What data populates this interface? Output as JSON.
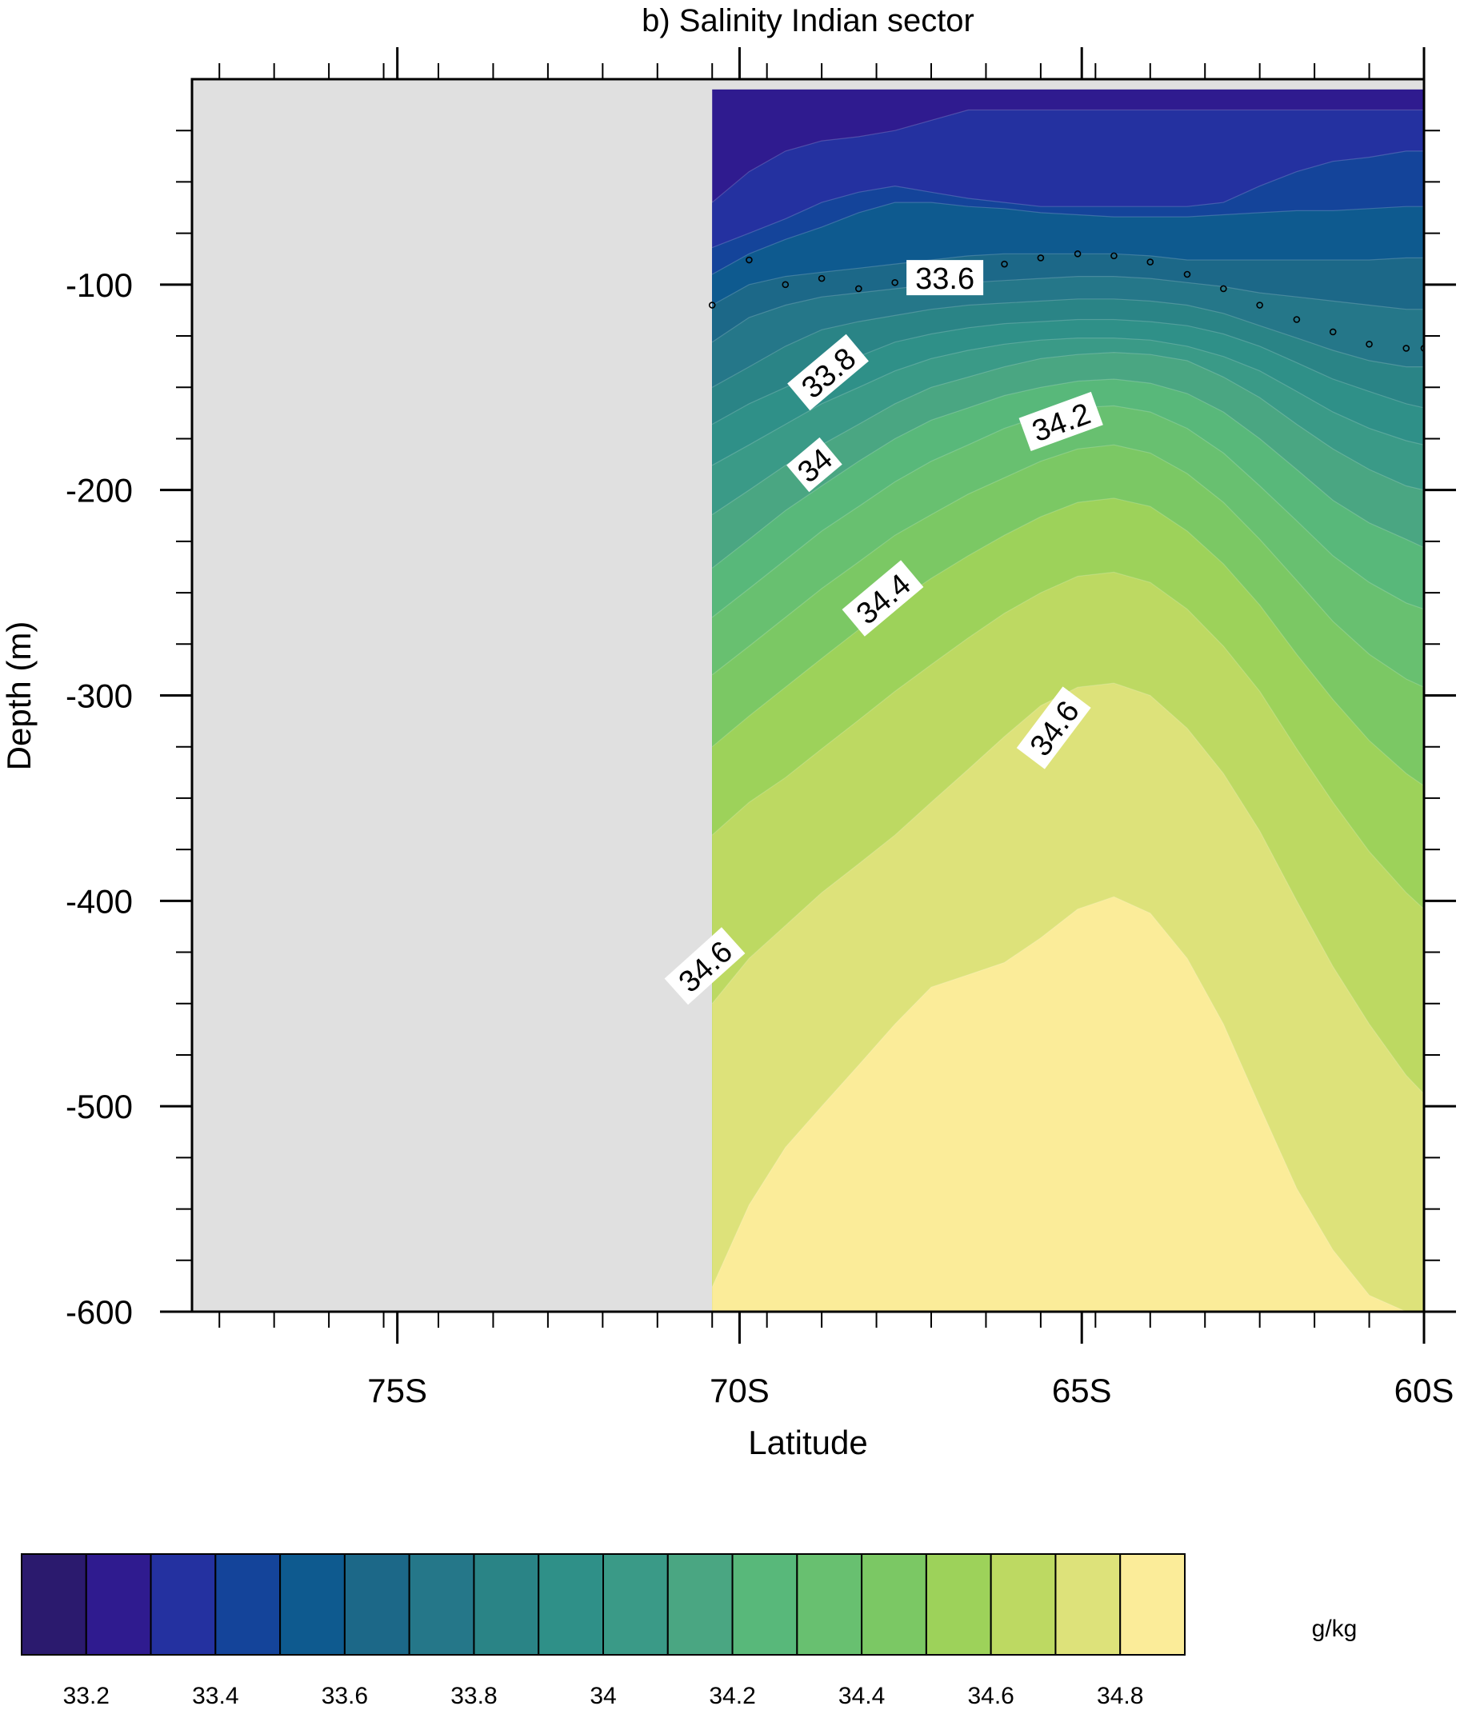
{
  "chart_data": {
    "type": "contour",
    "title": "b) Salinity Indian sector",
    "xlabel": "Latitude",
    "ylabel": "Depth (m)",
    "units_label": "g/kg",
    "x_range": [
      -78,
      -60
    ],
    "y_range": [
      -600,
      0
    ],
    "x_ticks": [
      {
        "value": -75,
        "label": "75S"
      },
      {
        "value": -70,
        "label": "70S"
      },
      {
        "value": -65,
        "label": "65S"
      },
      {
        "value": -60,
        "label": "60S"
      }
    ],
    "y_ticks": [
      {
        "value": -100,
        "label": "-100"
      },
      {
        "value": -200,
        "label": "-200"
      },
      {
        "value": -300,
        "label": "-300"
      },
      {
        "value": -400,
        "label": "-400"
      },
      {
        "value": -500,
        "label": "-500"
      },
      {
        "value": -600,
        "label": "-600"
      }
    ],
    "data_extent": {
      "lat_min": -70.4,
      "lat_max": -60,
      "depth_top": -5,
      "depth_bottom": -600
    },
    "missing_color": "#e0e0e0",
    "levels": [
      33.1,
      33.2,
      33.3,
      33.4,
      33.5,
      33.6,
      33.7,
      33.8,
      33.9,
      34.0,
      34.1,
      34.2,
      34.3,
      34.4,
      34.5,
      34.6,
      34.7,
      34.8,
      34.9
    ],
    "colors": [
      "#2b1a6e",
      "#2f1b8f",
      "#2431a0",
      "#14449a",
      "#0e5a8f",
      "#1c6888",
      "#257789",
      "#2a8486",
      "#2f9088",
      "#3a9a87",
      "#4aa682",
      "#58b87a",
      "#68c070",
      "#7bc864",
      "#9dd25a",
      "#bdd962",
      "#dde27a",
      "#fbec99"
    ],
    "colorbar_labels": [
      {
        "value": 33.2,
        "label": "33.2"
      },
      {
        "value": 33.4,
        "label": "33.4"
      },
      {
        "value": 33.6,
        "label": "33.6"
      },
      {
        "value": 33.8,
        "label": "33.8"
      },
      {
        "value": 34.0,
        "label": "34"
      },
      {
        "value": 34.2,
        "label": "34.2"
      },
      {
        "value": 34.4,
        "label": "34.4"
      },
      {
        "value": 34.6,
        "label": "34.6"
      },
      {
        "value": 34.8,
        "label": "34.8"
      }
    ],
    "latitudes": [
      -70.4,
      -69.86,
      -69.33,
      -68.8,
      -68.26,
      -67.73,
      -67.2,
      -66.66,
      -66.13,
      -65.6,
      -65.06,
      -64.53,
      -64.0,
      -63.46,
      -62.93,
      -62.4,
      -61.86,
      -61.33,
      -60.8,
      -60.26,
      -60.0
    ],
    "contour_lines": [
      {
        "level": 33.3,
        "depths": [
          -60,
          -45,
          -35,
          -30,
          -28,
          -25,
          -20,
          -15,
          -15,
          -15,
          -15,
          -15,
          -15,
          -15,
          -15,
          -15,
          -15,
          -15,
          -15,
          -15,
          -15
        ]
      },
      {
        "level": 33.4,
        "depths": [
          -82,
          -75,
          -68,
          -60,
          -55,
          -52,
          -55,
          -58,
          -60,
          -62,
          -62,
          -62,
          -62,
          -62,
          -60,
          -52,
          -45,
          -40,
          -38,
          -35,
          -35
        ]
      },
      {
        "level": 33.5,
        "depths": [
          -95,
          -85,
          -78,
          -72,
          -65,
          -60,
          -60,
          -62,
          -63,
          -65,
          -66,
          -67,
          -67,
          -67,
          -66,
          -65,
          -64,
          -64,
          -63,
          -62,
          -62
        ]
      },
      {
        "level": 33.6,
        "depths": [
          -110,
          -100,
          -96,
          -94,
          -92,
          -90,
          -88,
          -86,
          -85,
          -85,
          -85,
          -85,
          -86,
          -88,
          -88,
          -88,
          -88,
          -88,
          -88,
          -87,
          -87
        ]
      },
      {
        "level": 33.7,
        "depths": [
          -128,
          -116,
          -110,
          -106,
          -104,
          -102,
          -100,
          -99,
          -98,
          -97,
          -96,
          -96,
          -97,
          -99,
          -101,
          -104,
          -106,
          -108,
          -110,
          -112,
          -112
        ]
      },
      {
        "level": 33.8,
        "depths": [
          -150,
          -140,
          -130,
          -122,
          -118,
          -115,
          -112,
          -110,
          -109,
          -108,
          -107,
          -107,
          -108,
          -110,
          -114,
          -120,
          -126,
          -132,
          -137,
          -140,
          -140
        ]
      },
      {
        "level": 33.9,
        "depths": [
          -168,
          -158,
          -150,
          -142,
          -135,
          -128,
          -124,
          -121,
          -119,
          -118,
          -117,
          -117,
          -118,
          -120,
          -124,
          -130,
          -138,
          -146,
          -152,
          -158,
          -160
        ]
      },
      {
        "level": 34.0,
        "depths": [
          -188,
          -178,
          -168,
          -158,
          -150,
          -142,
          -136,
          -132,
          -129,
          -127,
          -126,
          -126,
          -127,
          -130,
          -135,
          -142,
          -152,
          -162,
          -170,
          -176,
          -178
        ]
      },
      {
        "level": 34.1,
        "depths": [
          -212,
          -200,
          -188,
          -178,
          -168,
          -158,
          -150,
          -145,
          -140,
          -136,
          -134,
          -133,
          -134,
          -137,
          -145,
          -155,
          -168,
          -180,
          -190,
          -198,
          -200
        ]
      },
      {
        "level": 34.2,
        "depths": [
          -238,
          -224,
          -210,
          -198,
          -186,
          -175,
          -166,
          -160,
          -154,
          -150,
          -147,
          -146,
          -148,
          -153,
          -162,
          -175,
          -190,
          -205,
          -216,
          -224,
          -228
        ]
      },
      {
        "level": 34.3,
        "depths": [
          -262,
          -248,
          -234,
          -220,
          -208,
          -196,
          -186,
          -178,
          -170,
          -164,
          -160,
          -159,
          -162,
          -170,
          -182,
          -198,
          -215,
          -232,
          -245,
          -255,
          -258
        ]
      },
      {
        "level": 34.4,
        "depths": [
          -290,
          -276,
          -262,
          -248,
          -235,
          -222,
          -212,
          -202,
          -194,
          -186,
          -180,
          -178,
          -182,
          -192,
          -206,
          -224,
          -244,
          -264,
          -280,
          -292,
          -296
        ]
      },
      {
        "level": 34.5,
        "depths": [
          -325,
          -310,
          -296,
          -282,
          -268,
          -255,
          -243,
          -232,
          -222,
          -213,
          -206,
          -204,
          -208,
          -220,
          -236,
          -256,
          -280,
          -302,
          -322,
          -338,
          -344
        ]
      },
      {
        "level": 34.6,
        "depths": [
          -368,
          -352,
          -340,
          -326,
          -312,
          -298,
          -285,
          -272,
          -260,
          -250,
          -242,
          -240,
          -245,
          -258,
          -276,
          -298,
          -326,
          -352,
          -376,
          -396,
          -404
        ]
      },
      {
        "level": 34.7,
        "depths": [
          -450,
          -428,
          -412,
          -396,
          -382,
          -368,
          -352,
          -336,
          -320,
          -305,
          -296,
          -294,
          -300,
          -316,
          -338,
          -366,
          -400,
          -432,
          -460,
          -485,
          -494
        ]
      },
      {
        "level": 34.8,
        "depths": [
          -588,
          -548,
          -520,
          -500,
          -480,
          -460,
          -442,
          -436,
          -430,
          -418,
          -404,
          -398,
          -406,
          -428,
          -460,
          -500,
          -540,
          -570,
          -592,
          -600,
          -600
        ]
      }
    ],
    "mixed_layer_points": [
      {
        "lat": -70.4,
        "depth": -110
      },
      {
        "lat": -69.86,
        "depth": -88
      },
      {
        "lat": -69.33,
        "depth": -100
      },
      {
        "lat": -68.8,
        "depth": -97
      },
      {
        "lat": -68.26,
        "depth": -102
      },
      {
        "lat": -67.73,
        "depth": -99
      },
      {
        "lat": -67.2,
        "depth": -95
      },
      {
        "lat": -66.66,
        "depth": -92
      },
      {
        "lat": -66.13,
        "depth": -90
      },
      {
        "lat": -65.6,
        "depth": -87
      },
      {
        "lat": -65.06,
        "depth": -85
      },
      {
        "lat": -64.53,
        "depth": -86
      },
      {
        "lat": -64.0,
        "depth": -89
      },
      {
        "lat": -63.46,
        "depth": -95
      },
      {
        "lat": -62.93,
        "depth": -102
      },
      {
        "lat": -62.4,
        "depth": -110
      },
      {
        "lat": -61.86,
        "depth": -117
      },
      {
        "lat": -61.33,
        "depth": -123
      },
      {
        "lat": -60.8,
        "depth": -129
      },
      {
        "lat": -60.26,
        "depth": -131
      },
      {
        "lat": -60.0,
        "depth": -131
      }
    ],
    "line_labels": [
      {
        "text": "33.6",
        "lat": -67.0,
        "depth": -97,
        "angle": 0
      },
      {
        "text": "33.8",
        "lat": -68.7,
        "depth": -143,
        "angle": -40
      },
      {
        "text": "34.2",
        "lat": -65.3,
        "depth": -167,
        "angle": -20
      },
      {
        "text": "34",
        "lat": -68.9,
        "depth": -188,
        "angle": -40
      },
      {
        "text": "34.4",
        "lat": -67.9,
        "depth": -253,
        "angle": -40
      },
      {
        "text": "34.6",
        "lat": -65.4,
        "depth": -316,
        "angle": -53
      },
      {
        "text": "34.6",
        "lat": -70.5,
        "depth": -432,
        "angle": -42
      }
    ]
  }
}
